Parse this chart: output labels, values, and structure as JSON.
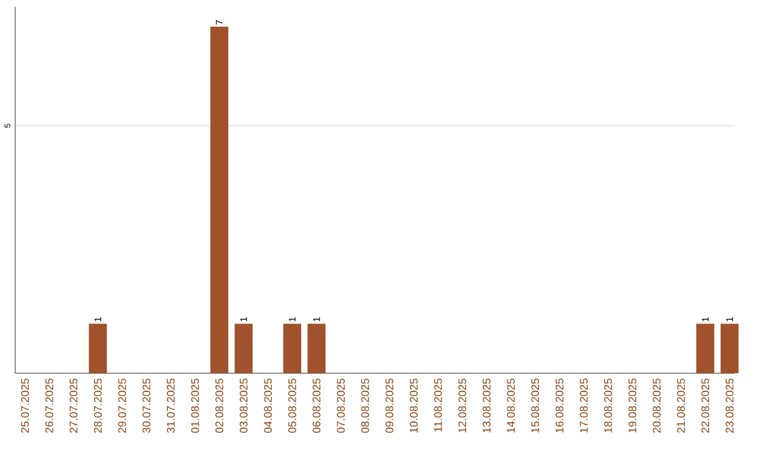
{
  "chart_data": {
    "type": "bar",
    "categories": [
      "25.07.2025",
      "26.07.2025",
      "27.07.2025",
      "28.07.2025",
      "29.07.2025",
      "30.07.2025",
      "31.07.2025",
      "01.08.2025",
      "02.08.2025",
      "03.08.2025",
      "04.08.2025",
      "05.08.2025",
      "06.08.2025",
      "07.08.2025",
      "08.08.2025",
      "09.08.2025",
      "10.08.2025",
      "11.08.2025",
      "12.08.2025",
      "13.08.2025",
      "14.08.2025",
      "15.08.2025",
      "16.08.2025",
      "17.08.2025",
      "18.08.2025",
      "19.08.2025",
      "20.08.2025",
      "21.08.2025",
      "22.08.2025",
      "23.08.2025"
    ],
    "values": [
      0,
      0,
      0,
      1,
      0,
      0,
      0,
      0,
      7,
      1,
      0,
      1,
      1,
      0,
      0,
      0,
      0,
      0,
      0,
      0,
      0,
      0,
      0,
      0,
      0,
      0,
      0,
      0,
      1,
      1
    ],
    "value_labels": [
      null,
      null,
      null,
      "1",
      null,
      null,
      null,
      null,
      "7",
      "1",
      null,
      "1",
      "1",
      null,
      null,
      null,
      null,
      null,
      null,
      null,
      null,
      null,
      null,
      null,
      null,
      null,
      null,
      null,
      "1",
      "1"
    ],
    "color": "#a0522d",
    "ylim": [
      0,
      7.4
    ],
    "yticks": [
      5
    ],
    "grid": "y"
  }
}
